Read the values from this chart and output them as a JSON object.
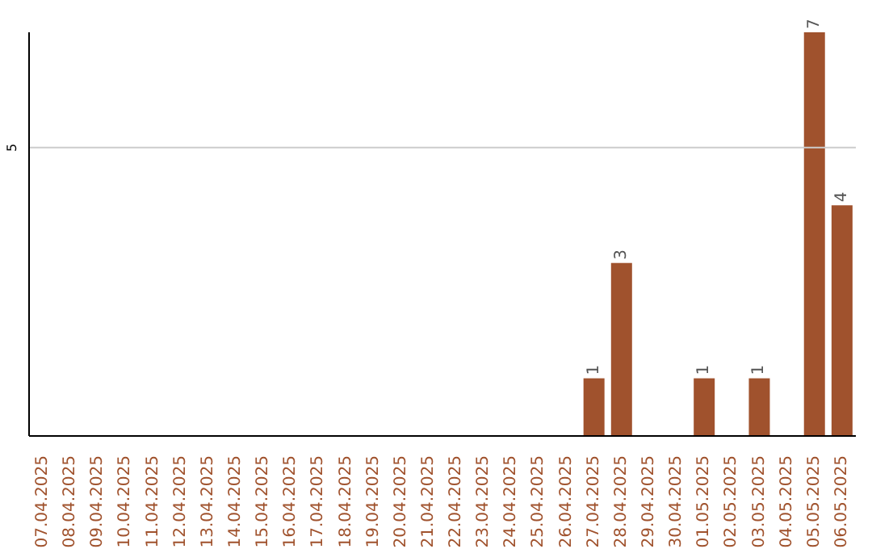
{
  "chart_data": {
    "type": "bar",
    "categories": [
      "07.04.2025",
      "08.04.2025",
      "09.04.2025",
      "10.04.2025",
      "11.04.2025",
      "12.04.2025",
      "13.04.2025",
      "14.04.2025",
      "15.04.2025",
      "16.04.2025",
      "17.04.2025",
      "18.04.2025",
      "19.04.2025",
      "20.04.2025",
      "21.04.2025",
      "22.04.2025",
      "23.04.2025",
      "24.04.2025",
      "25.04.2025",
      "26.04.2025",
      "27.04.2025",
      "28.04.2025",
      "29.04.2025",
      "30.04.2025",
      "01.05.2025",
      "02.05.2025",
      "03.05.2025",
      "04.05.2025",
      "05.05.2025",
      "06.05.2025"
    ],
    "values": [
      null,
      null,
      null,
      null,
      null,
      null,
      null,
      null,
      null,
      null,
      null,
      null,
      null,
      null,
      null,
      null,
      null,
      null,
      null,
      null,
      1,
      3,
      null,
      null,
      1,
      null,
      1,
      null,
      7,
      4
    ],
    "data_labels": true,
    "color": "#a0522d",
    "ylim": [
      0,
      7
    ],
    "ref_lines": [
      {
        "axis": "y",
        "value": 5,
        "label": "5",
        "color": "#cccccc"
      }
    ]
  }
}
